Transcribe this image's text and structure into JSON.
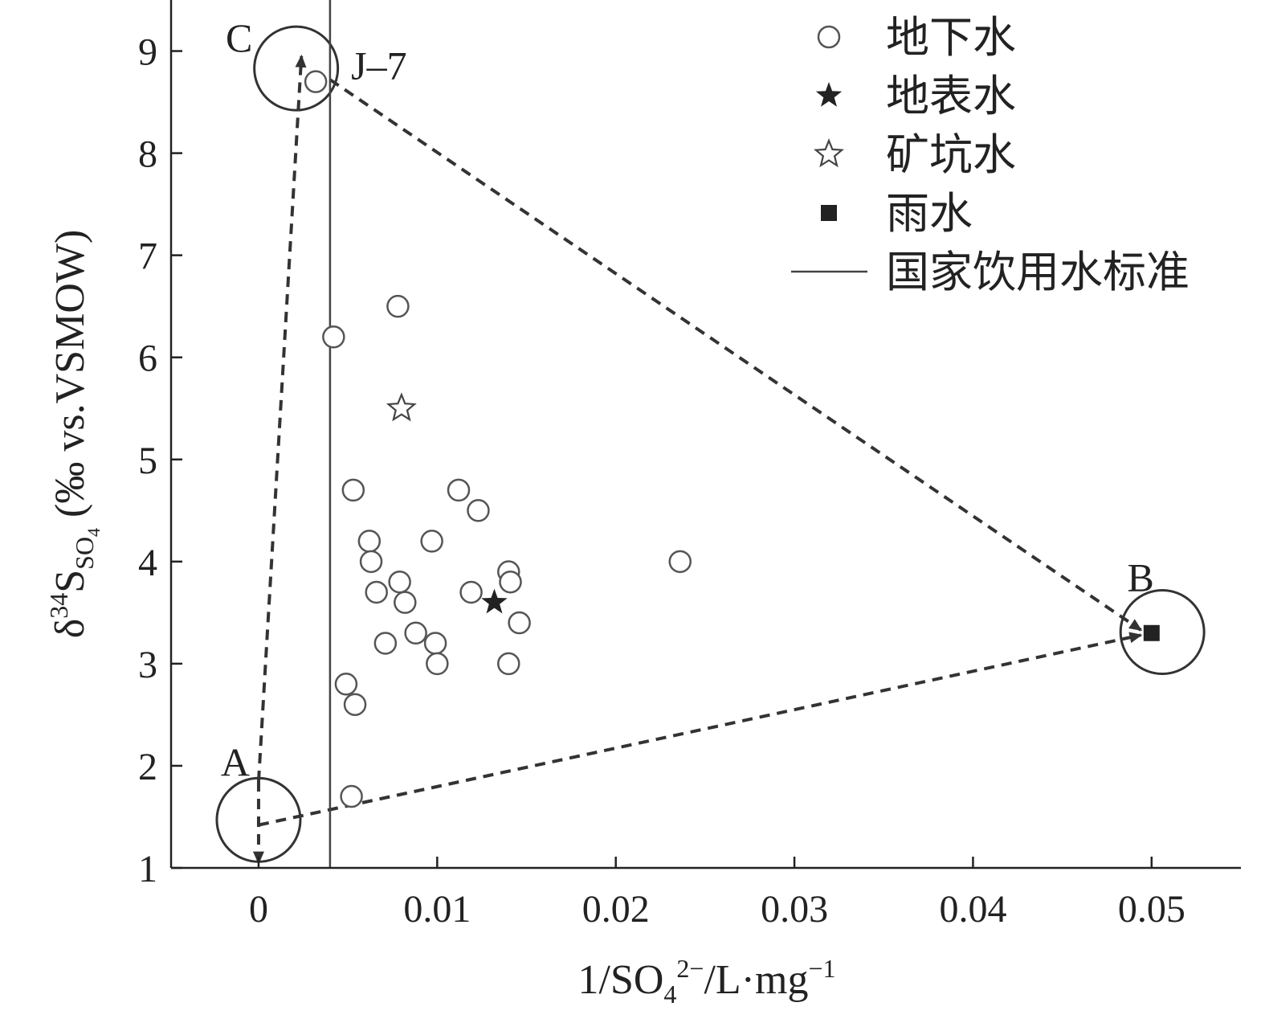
{
  "chart_data": {
    "type": "scatter",
    "xlabel": {
      "prefix": "1/SO",
      "sub": "4",
      "sup": "2−",
      "suffix": "/L·mg",
      "suffix_sup": "−1"
    },
    "ylabel": {
      "delta": "δ",
      "mass": "34",
      "element": "S",
      "sub": "SO",
      "sub_index": "4",
      "unit": " (‰ vs.VSMOW)"
    },
    "xlim": [
      -0.0049,
      0.055
    ],
    "ylim": [
      1,
      9.5
    ],
    "xticks": [
      0,
      0.01,
      0.02,
      0.03,
      0.04,
      0.05
    ],
    "xtick_labels": [
      "0",
      "0.01",
      "0.02",
      "0.03",
      "0.04",
      "0.05"
    ],
    "yticks": [
      1,
      2,
      3,
      4,
      5,
      6,
      7,
      8,
      9
    ],
    "ytick_labels": [
      "1",
      "2",
      "3",
      "4",
      "5",
      "6",
      "7",
      "8",
      "9"
    ],
    "grid": false,
    "legend_position": "top-right",
    "series": [
      {
        "name": "地下水",
        "marker": "open-circle",
        "color": "#555555",
        "points": [
          [
            0.0032,
            8.7
          ],
          [
            0.0078,
            6.5
          ],
          [
            0.0042,
            6.2
          ],
          [
            0.0053,
            4.7
          ],
          [
            0.0112,
            4.7
          ],
          [
            0.0123,
            4.5
          ],
          [
            0.0062,
            4.2
          ],
          [
            0.0097,
            4.2
          ],
          [
            0.0063,
            4.0
          ],
          [
            0.0236,
            4.0
          ],
          [
            0.0066,
            3.7
          ],
          [
            0.0079,
            3.8
          ],
          [
            0.0082,
            3.6
          ],
          [
            0.0119,
            3.7
          ],
          [
            0.014,
            3.9
          ],
          [
            0.0141,
            3.8
          ],
          [
            0.0146,
            3.4
          ],
          [
            0.0071,
            3.2
          ],
          [
            0.0088,
            3.3
          ],
          [
            0.0099,
            3.2
          ],
          [
            0.01,
            3.0
          ],
          [
            0.014,
            3.0
          ],
          [
            0.0049,
            2.8
          ],
          [
            0.0054,
            2.6
          ],
          [
            0.0052,
            1.7
          ]
        ]
      },
      {
        "name": "地表水",
        "marker": "filled-star",
        "color": "#222222",
        "points": [
          [
            0.0132,
            3.6
          ]
        ]
      },
      {
        "name": "矿坑水",
        "marker": "open-star",
        "color": "#444444",
        "points": [
          [
            0.008,
            5.5
          ]
        ]
      },
      {
        "name": "雨水",
        "marker": "filled-square",
        "color": "#222222",
        "points": [
          [
            0.05,
            3.3
          ]
        ]
      }
    ],
    "reference_lines": [
      {
        "name": "国家饮用水标准",
        "x": 0.004,
        "color": "#444444"
      }
    ],
    "endmember_regions": [
      {
        "label": "A",
        "x": 0.0,
        "y": 1.47
      },
      {
        "label": "B",
        "x": 0.0506,
        "y": 3.31
      },
      {
        "label": "C",
        "x": 0.0021,
        "y": 8.83
      }
    ],
    "annotations": [
      {
        "text": "J–7",
        "x": 0.0032,
        "y": 8.7
      }
    ],
    "mixing_lines": [
      {
        "from": [
          0.0,
          1.85
        ],
        "to": [
          0.0,
          1.05
        ]
      },
      {
        "from": [
          0.0,
          1.85
        ],
        "to": [
          0.0024,
          8.95
        ]
      },
      {
        "from": [
          0.0,
          1.42
        ],
        "to": [
          0.0494,
          3.28
        ]
      },
      {
        "from": [
          0.004,
          8.72
        ],
        "to": [
          0.0494,
          3.33
        ]
      }
    ]
  }
}
